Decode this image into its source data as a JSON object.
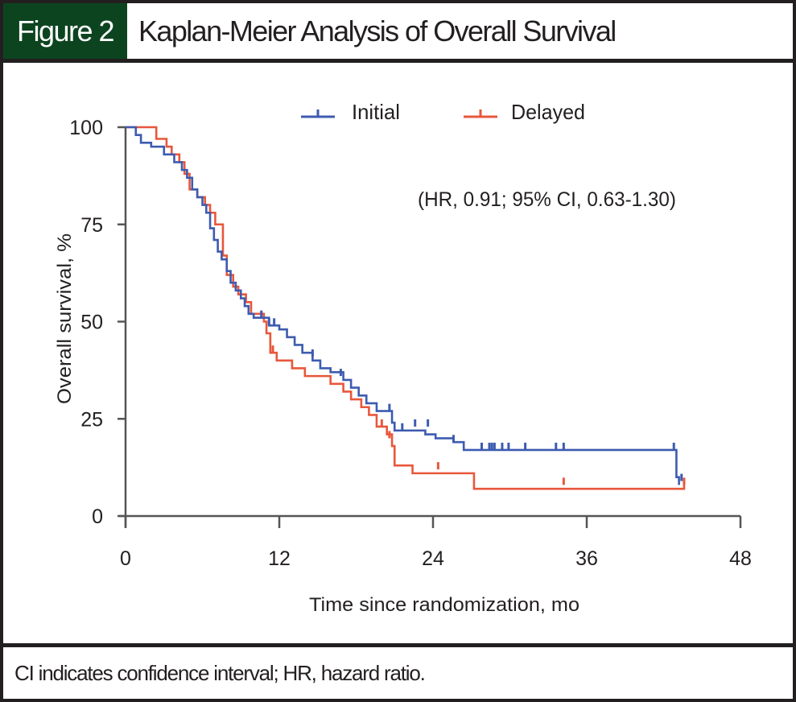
{
  "figure": {
    "label": "Figure 2",
    "title": "Kaplan-Meier Analysis of Overall Survival",
    "footnote": "CI indicates confidence interval; HR, hazard ratio."
  },
  "colors": {
    "header_bg": "#0d4420",
    "initial": "#3d5bb0",
    "delayed": "#e8573c",
    "axis": "#555555"
  },
  "chart_data": {
    "type": "line",
    "subtype": "kaplan-meier-step",
    "title": "Kaplan-Meier Analysis of Overall Survival",
    "xlabel": "Time since randomization, mo",
    "ylabel": "Overall survival, %",
    "xlim": [
      0,
      48
    ],
    "ylim": [
      0,
      100
    ],
    "xticks": [
      0,
      12,
      24,
      36,
      48
    ],
    "yticks": [
      0,
      25,
      50,
      75,
      100
    ],
    "grid": false,
    "legend": {
      "placement": "top-center",
      "entries": [
        "Initial",
        "Delayed"
      ]
    },
    "annotation": "(HR, 0.91; 95% CI, 0.63-1.30)",
    "series": [
      {
        "name": "Initial",
        "steps": [
          [
            0,
            100
          ],
          [
            0.8,
            98
          ],
          [
            1.2,
            96
          ],
          [
            2.0,
            95
          ],
          [
            3.0,
            93
          ],
          [
            3.8,
            91
          ],
          [
            4.4,
            89
          ],
          [
            4.8,
            87
          ],
          [
            5.2,
            84
          ],
          [
            5.6,
            82
          ],
          [
            6.0,
            80
          ],
          [
            6.3,
            78
          ],
          [
            6.6,
            74
          ],
          [
            6.9,
            71
          ],
          [
            7.2,
            68
          ],
          [
            7.5,
            66
          ],
          [
            7.9,
            63
          ],
          [
            8.2,
            60
          ],
          [
            8.6,
            58
          ],
          [
            9.0,
            56
          ],
          [
            9.3,
            54
          ],
          [
            9.6,
            52
          ],
          [
            10.0,
            51
          ],
          [
            11.2,
            49
          ],
          [
            12.0,
            48
          ],
          [
            12.6,
            46
          ],
          [
            13.2,
            44
          ],
          [
            13.8,
            42
          ],
          [
            14.6,
            40
          ],
          [
            15.2,
            38
          ],
          [
            16.0,
            37
          ],
          [
            17.0,
            35
          ],
          [
            17.6,
            33
          ],
          [
            18.2,
            31
          ],
          [
            18.8,
            29
          ],
          [
            19.6,
            27
          ],
          [
            20.8,
            24
          ],
          [
            21.0,
            22
          ],
          [
            22.0,
            22
          ],
          [
            23.4,
            21
          ],
          [
            24.2,
            20
          ],
          [
            25.6,
            19
          ],
          [
            26.4,
            17
          ],
          [
            42.8,
            17
          ],
          [
            43.0,
            10
          ],
          [
            43.2,
            8
          ]
        ],
        "censored": [
          [
            10.6,
            51
          ],
          [
            11.2,
            49
          ],
          [
            11.6,
            49
          ],
          [
            14.6,
            41
          ],
          [
            16.8,
            36
          ],
          [
            20.6,
            27
          ],
          [
            21.6,
            22
          ],
          [
            22.6,
            23
          ],
          [
            23.6,
            23
          ],
          [
            25.6,
            19
          ],
          [
            27.8,
            17
          ],
          [
            28.4,
            17
          ],
          [
            28.6,
            17
          ],
          [
            28.8,
            17
          ],
          [
            29.4,
            17
          ],
          [
            29.9,
            17
          ],
          [
            31.2,
            17
          ],
          [
            33.6,
            17
          ],
          [
            34.2,
            17
          ],
          [
            42.8,
            17
          ],
          [
            43.4,
            9
          ]
        ]
      },
      {
        "name": "Delayed",
        "steps": [
          [
            0,
            100
          ],
          [
            2.2,
            100
          ],
          [
            2.4,
            97
          ],
          [
            3.2,
            95
          ],
          [
            3.6,
            93
          ],
          [
            4.2,
            91
          ],
          [
            4.6,
            88
          ],
          [
            5.0,
            84
          ],
          [
            5.6,
            82
          ],
          [
            6.2,
            80
          ],
          [
            6.6,
            78
          ],
          [
            7.0,
            75
          ],
          [
            7.6,
            67
          ],
          [
            7.9,
            62
          ],
          [
            8.4,
            59
          ],
          [
            8.8,
            57
          ],
          [
            9.4,
            55
          ],
          [
            9.8,
            52
          ],
          [
            10.2,
            52
          ],
          [
            10.8,
            50
          ],
          [
            11.0,
            47
          ],
          [
            11.3,
            42
          ],
          [
            11.8,
            40
          ],
          [
            13.0,
            38
          ],
          [
            14.0,
            36
          ],
          [
            15.4,
            36
          ],
          [
            16.0,
            34
          ],
          [
            17.0,
            32
          ],
          [
            17.6,
            30
          ],
          [
            18.4,
            28
          ],
          [
            19.0,
            26
          ],
          [
            19.6,
            23
          ],
          [
            20.4,
            21
          ],
          [
            20.8,
            18
          ],
          [
            21.0,
            13
          ],
          [
            22.4,
            11
          ],
          [
            27.2,
            7
          ],
          [
            43.6,
            7
          ],
          [
            43.6,
            9
          ]
        ],
        "censored": [
          [
            11.5,
            42
          ],
          [
            20.0,
            23
          ],
          [
            20.6,
            20
          ],
          [
            24.4,
            12
          ],
          [
            34.2,
            8
          ],
          [
            43.6,
            8
          ]
        ]
      }
    ]
  }
}
